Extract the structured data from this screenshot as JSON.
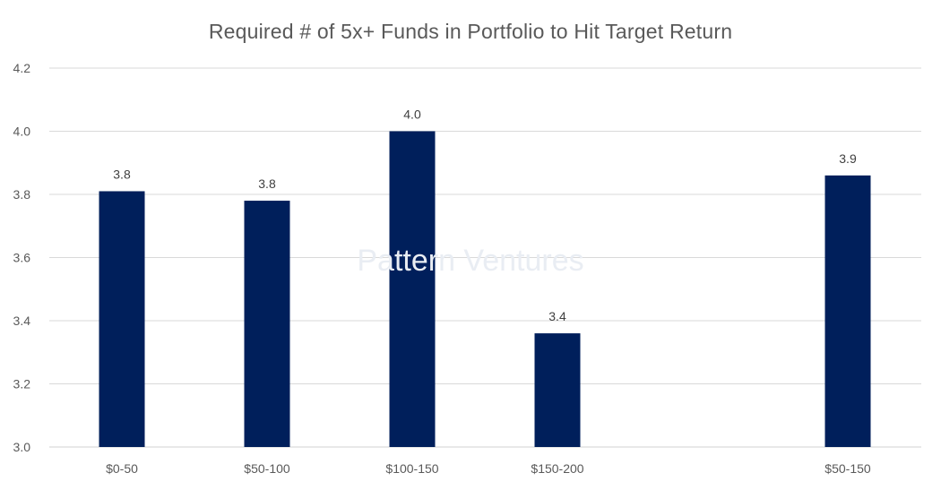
{
  "chart_data": {
    "type": "bar",
    "title": "Required # of 5x+ Funds in Portfolio to Hit Target Return",
    "categories": [
      "$0-50",
      "$50-100",
      "$100-150",
      "$150-200",
      "$50-150"
    ],
    "values": [
      3.81,
      3.78,
      4.0,
      3.36,
      3.86
    ],
    "data_labels": [
      "3.8",
      "3.8",
      "4.0",
      "3.4",
      "3.9"
    ],
    "ylim": [
      3.0,
      4.2
    ],
    "yticks": [
      "3.0",
      "3.2",
      "3.4",
      "3.6",
      "3.8",
      "4.0",
      "4.2"
    ],
    "grid": true,
    "bar_color": "#001f5b",
    "watermark": "Pattern Ventures"
  }
}
